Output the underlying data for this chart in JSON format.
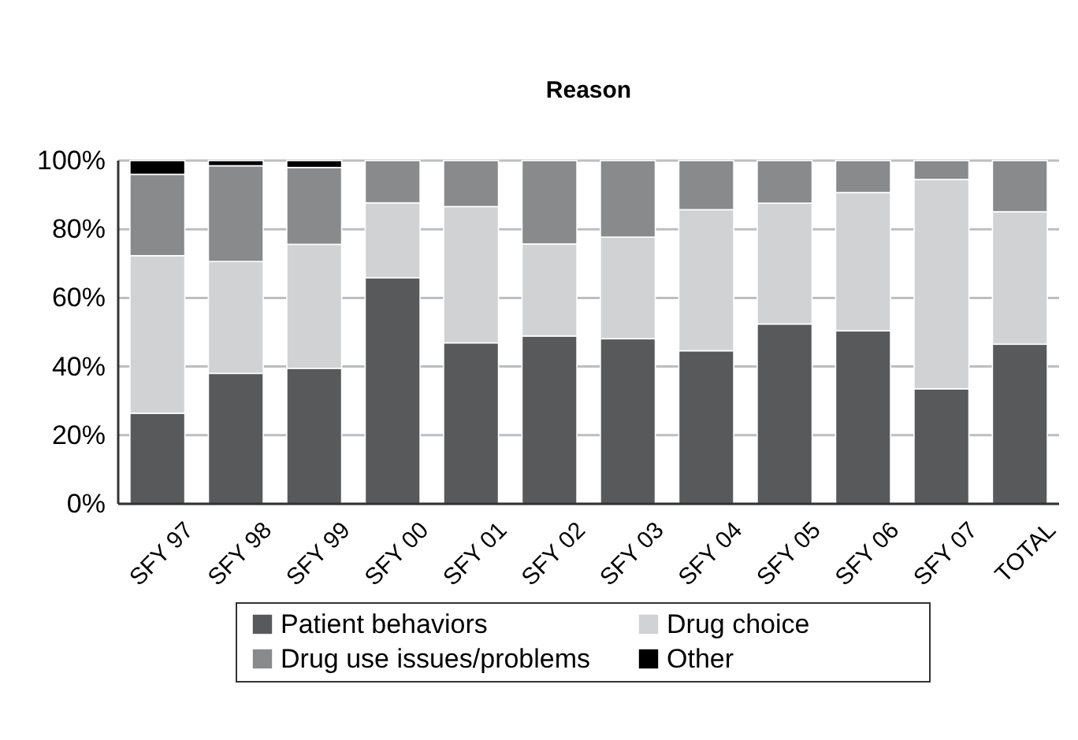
{
  "chart_data": {
    "type": "bar",
    "title": "Reason",
    "stacked": true,
    "categories": [
      "SFY 97",
      "SFY 98",
      "SFY 99",
      "SFY 00",
      "SFY 01",
      "SFY 02",
      "SFY 03",
      "SFY 04",
      "SFY 05",
      "SFY 06",
      "SFY 07",
      "TOTAL"
    ],
    "series": [
      {
        "name": "Patient behaviors",
        "color": "#58595b",
        "values": [
          26.4,
          38.0,
          39.5,
          65.9,
          46.9,
          48.9,
          48.1,
          44.6,
          52.4,
          50.4,
          33.5,
          46.5
        ]
      },
      {
        "name": "Drug choice",
        "color": "#d1d2d4",
        "values": [
          45.9,
          32.6,
          36.1,
          21.8,
          39.7,
          26.8,
          29.6,
          41.1,
          35.2,
          40.3,
          61.0,
          38.6
        ]
      },
      {
        "name": "Drug use issues/problems",
        "color": "#898a8c",
        "values": [
          23.7,
          27.9,
          22.4,
          12.3,
          13.4,
          24.3,
          22.3,
          14.3,
          12.4,
          9.3,
          5.5,
          14.9
        ]
      },
      {
        "name": "Other",
        "color": "#000000",
        "values": [
          4,
          1.5,
          2,
          0,
          0,
          0,
          0,
          0,
          0,
          0,
          0,
          0
        ]
      }
    ],
    "ylim": [
      0,
      100
    ],
    "yticks": [
      {
        "value": 0,
        "label": "0%"
      },
      {
        "value": 20,
        "label": "20%"
      },
      {
        "value": 40,
        "label": "40%"
      },
      {
        "value": 60,
        "label": "60%"
      },
      {
        "value": 80,
        "label": "80%"
      },
      {
        "value": 100,
        "label": "100%"
      }
    ],
    "grid": "y",
    "legend": "bottom"
  }
}
